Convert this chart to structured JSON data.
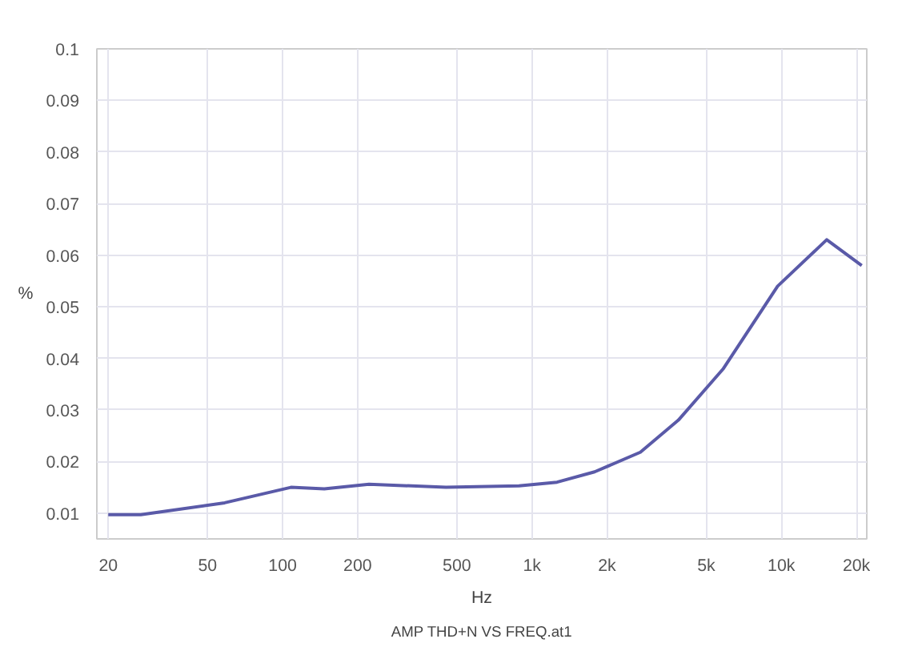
{
  "chart_data": {
    "type": "line",
    "xlabel": "Hz",
    "ylabel": "%",
    "annotations": [
      "AMP THD+N VS FREQ.at1"
    ],
    "x": [
      20,
      27,
      58.6,
      108,
      147,
      222,
      452,
      887,
      1260,
      1783,
      2720,
      3860,
      5830,
      9660,
      15200,
      21000
    ],
    "series": [
      {
        "color": "#5a5aa8",
        "values": [
          0.0097,
          0.0097,
          0.012,
          0.015,
          0.0147,
          0.0156,
          0.015,
          0.0153,
          0.016,
          0.018,
          0.0218,
          0.028,
          0.0379,
          0.054,
          0.063,
          0.058
        ]
      }
    ],
    "log": "x",
    "xlim": [
      18,
      22000
    ],
    "ylim": [
      0.005,
      0.1
    ],
    "xticks": [
      20,
      50,
      100,
      200,
      500,
      {
        "value": 1000,
        "label": "1k"
      },
      {
        "value": 2000,
        "label": "2k"
      },
      {
        "value": 5000,
        "label": "5k"
      },
      {
        "value": 10000,
        "label": "10k"
      },
      {
        "value": 20000,
        "label": "20k"
      }
    ],
    "yticks": [
      0.01,
      0.02,
      0.03,
      0.04,
      0.05,
      0.06,
      0.07,
      0.08,
      0.09,
      0.1
    ],
    "grid": true,
    "marker": "none",
    "line_style": "solid"
  }
}
